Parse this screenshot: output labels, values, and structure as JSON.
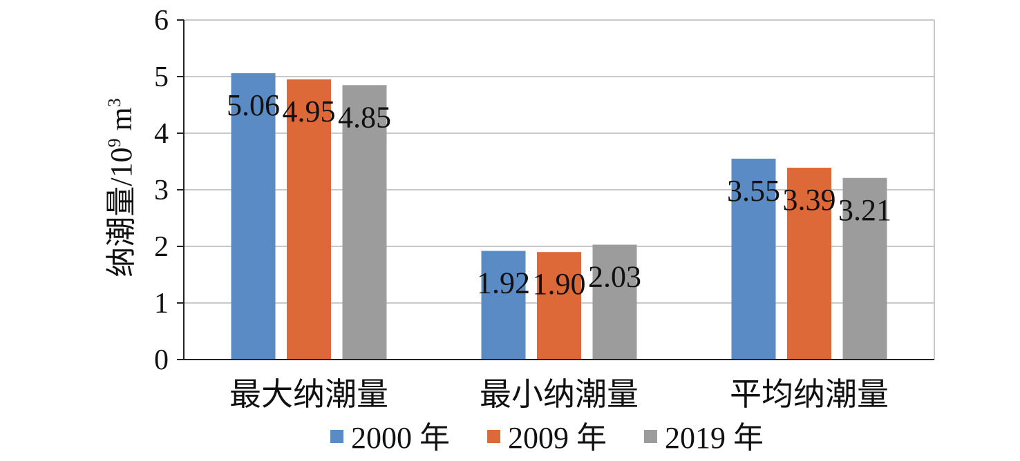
{
  "chart_data": {
    "type": "bar",
    "ylabel": "纳潮量/10",
    "ylabel_sup": "9",
    "ylabel_unit": " m",
    "ylabel_unit_sup": "3",
    "ylim": [
      0,
      6
    ],
    "yticks": [
      "0",
      "1",
      "2",
      "3",
      "4",
      "5",
      "6"
    ],
    "grid": true,
    "legend_position": "bottom",
    "categories": [
      "最大纳潮量",
      "最小纳潮量",
      "平均纳潮量"
    ],
    "series": [
      {
        "name": "2000 年",
        "color": "#5b8bc5",
        "values": [
          5.06,
          1.92,
          3.55
        ],
        "labels": [
          "5.06",
          "1.92",
          "3.55"
        ]
      },
      {
        "name": "2009 年",
        "color": "#dd6838",
        "values": [
          4.95,
          1.9,
          3.39
        ],
        "labels": [
          "4.95",
          "1.90",
          "3.39"
        ]
      },
      {
        "name": "2019 年",
        "color": "#9c9c9c",
        "values": [
          4.85,
          2.03,
          3.21
        ],
        "labels": [
          "4.85",
          "2.03",
          "3.21"
        ]
      }
    ]
  }
}
